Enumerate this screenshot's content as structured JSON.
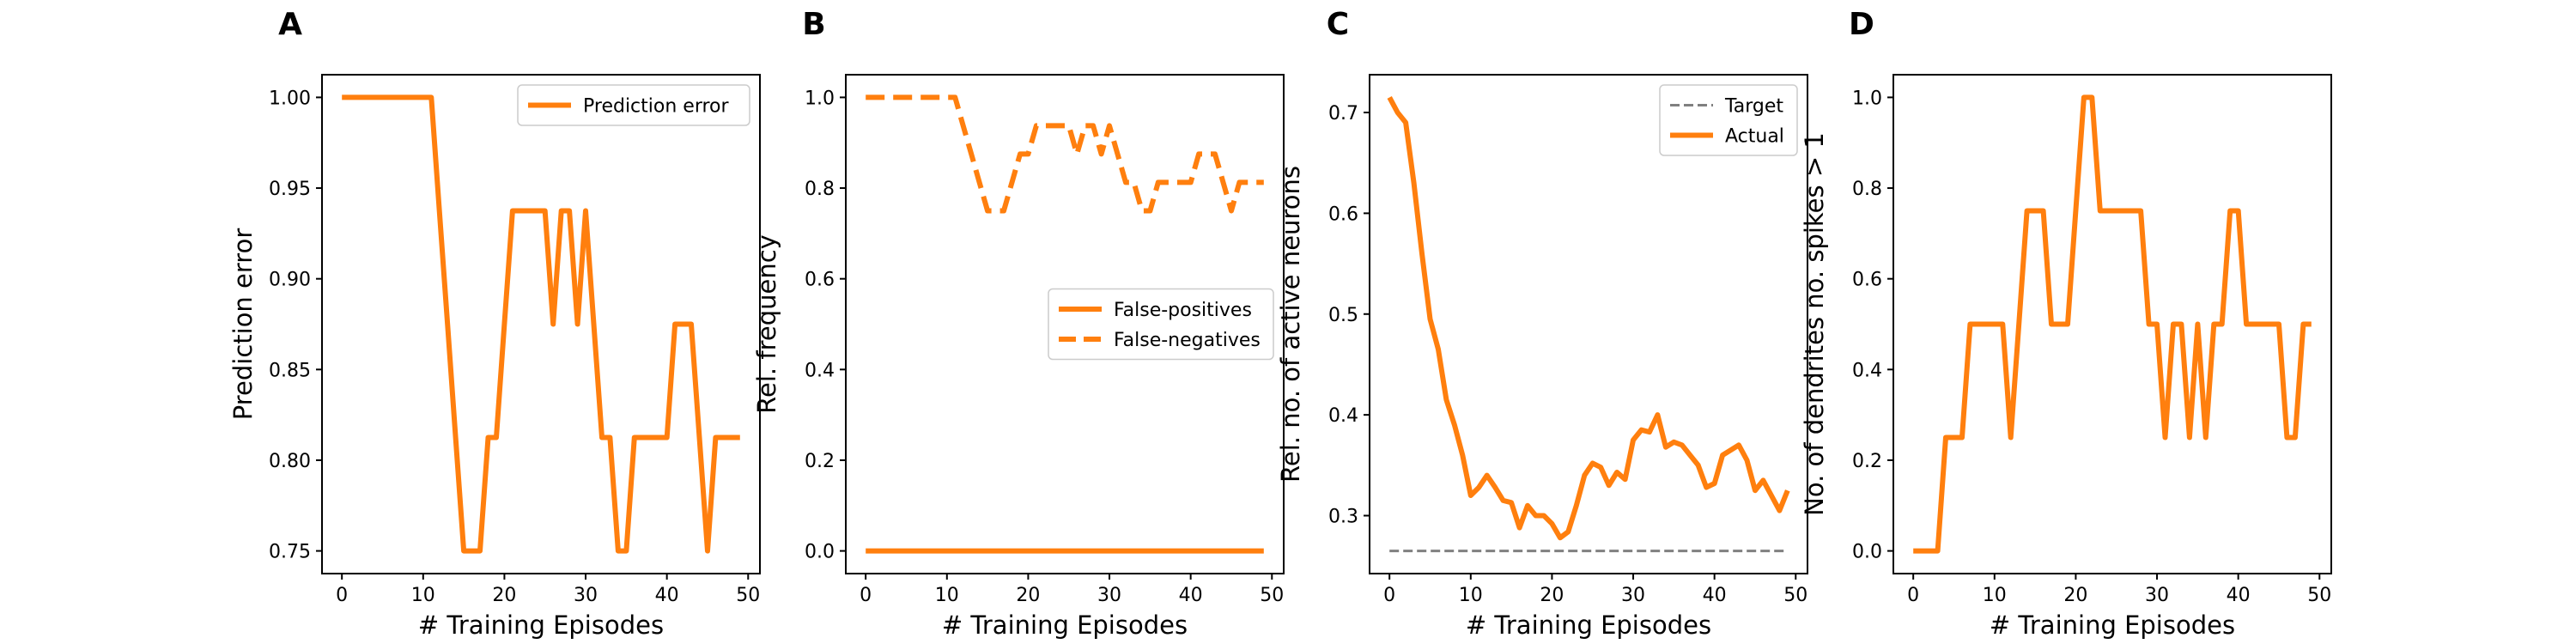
{
  "colors": {
    "series": "#ff7f0e",
    "target": "#808080",
    "frame": "#000000"
  },
  "chart_data": [
    {
      "panel_label": "A",
      "type": "line",
      "xlabel": "# Training Episodes",
      "ylabel": "Prediction error",
      "xlim": [
        -2.45,
        51.45
      ],
      "ylim": [
        0.7375,
        1.0125
      ],
      "xticks": [
        0,
        10,
        20,
        30,
        40,
        50
      ],
      "yticks": [
        0.75,
        0.8,
        0.85,
        0.9,
        0.95,
        1.0
      ],
      "ytick_labels": [
        "0.75",
        "0.80",
        "0.85",
        "0.90",
        "0.95",
        "1.00"
      ],
      "legend_loc": "upper-right",
      "series": [
        {
          "name": "Prediction error",
          "style": "solid",
          "x": [
            0,
            1,
            2,
            3,
            4,
            5,
            6,
            7,
            8,
            9,
            10,
            11,
            12,
            13,
            14,
            15,
            16,
            17,
            18,
            19,
            20,
            21,
            22,
            23,
            24,
            25,
            26,
            27,
            28,
            29,
            30,
            31,
            32,
            33,
            34,
            35,
            36,
            37,
            38,
            39,
            40,
            41,
            42,
            43,
            44,
            45,
            46,
            47,
            48,
            49
          ],
          "y": [
            1,
            1,
            1,
            1,
            1,
            1,
            1,
            1,
            1,
            1,
            1,
            1,
            0.9375,
            0.875,
            0.8125,
            0.75,
            0.75,
            0.75,
            0.8125,
            0.8125,
            0.875,
            0.9375,
            0.9375,
            0.9375,
            0.9375,
            0.9375,
            0.875,
            0.9375,
            0.9375,
            0.875,
            0.9375,
            0.875,
            0.8125,
            0.8125,
            0.75,
            0.75,
            0.8125,
            0.8125,
            0.8125,
            0.8125,
            0.8125,
            0.875,
            0.875,
            0.875,
            0.8125,
            0.75,
            0.8125,
            0.8125,
            0.8125,
            0.8125
          ]
        }
      ]
    },
    {
      "panel_label": "B",
      "type": "line",
      "xlabel": "# Training Episodes",
      "ylabel": "Rel. frequency",
      "xlim": [
        -2.45,
        51.45
      ],
      "ylim": [
        -0.05,
        1.05
      ],
      "xticks": [
        0,
        10,
        20,
        30,
        40,
        50
      ],
      "yticks": [
        0.0,
        0.2,
        0.4,
        0.6,
        0.8,
        1.0
      ],
      "ytick_labels": [
        "0.0",
        "0.2",
        "0.4",
        "0.6",
        "0.8",
        "1.0"
      ],
      "legend_loc": "center-right",
      "series": [
        {
          "name": "False-positives",
          "style": "solid",
          "x": [
            0,
            49
          ],
          "y": [
            0,
            0
          ]
        },
        {
          "name": "False-negatives",
          "style": "dashed",
          "x": [
            0,
            1,
            2,
            3,
            4,
            5,
            6,
            7,
            8,
            9,
            10,
            11,
            12,
            13,
            14,
            15,
            16,
            17,
            18,
            19,
            20,
            21,
            22,
            23,
            24,
            25,
            26,
            27,
            28,
            29,
            30,
            31,
            32,
            33,
            34,
            35,
            36,
            37,
            38,
            39,
            40,
            41,
            42,
            43,
            44,
            45,
            46,
            47,
            48,
            49
          ],
          "y": [
            1,
            1,
            1,
            1,
            1,
            1,
            1,
            1,
            1,
            1,
            1,
            1,
            0.9375,
            0.875,
            0.8125,
            0.75,
            0.75,
            0.75,
            0.8125,
            0.875,
            0.875,
            0.9375,
            0.9375,
            0.9375,
            0.9375,
            0.9375,
            0.875,
            0.9375,
            0.9375,
            0.875,
            0.9375,
            0.875,
            0.8125,
            0.8125,
            0.75,
            0.75,
            0.8125,
            0.8125,
            0.8125,
            0.8125,
            0.8125,
            0.875,
            0.875,
            0.875,
            0.8125,
            0.75,
            0.8125,
            0.8125,
            0.8125,
            0.8125
          ]
        }
      ]
    },
    {
      "panel_label": "C",
      "type": "line",
      "xlabel": "# Training Episodes",
      "ylabel": "Rel. no. of active neurons",
      "xlim": [
        -2.45,
        51.45
      ],
      "ylim": [
        0.2425,
        0.7375
      ],
      "xticks": [
        0,
        10,
        20,
        30,
        40,
        50
      ],
      "yticks": [
        0.3,
        0.4,
        0.5,
        0.6,
        0.7
      ],
      "ytick_labels": [
        "0.3",
        "0.4",
        "0.5",
        "0.6",
        "0.7"
      ],
      "legend_loc": "upper-right",
      "series": [
        {
          "name": "Target",
          "style": "dashed-thin",
          "x": [
            0,
            49
          ],
          "y": [
            0.265,
            0.265
          ]
        },
        {
          "name": "Actual",
          "style": "solid",
          "x": [
            0,
            1,
            2,
            3,
            4,
            5,
            6,
            7,
            8,
            9,
            10,
            11,
            12,
            13,
            14,
            15,
            16,
            17,
            18,
            19,
            20,
            21,
            22,
            23,
            24,
            25,
            26,
            27,
            28,
            29,
            30,
            31,
            32,
            33,
            34,
            35,
            36,
            37,
            38,
            39,
            40,
            41,
            42,
            43,
            44,
            45,
            46,
            47,
            48,
            49
          ],
          "y": [
            0.715,
            0.7,
            0.69,
            0.63,
            0.56,
            0.495,
            0.465,
            0.415,
            0.39,
            0.36,
            0.32,
            0.328,
            0.34,
            0.328,
            0.315,
            0.313,
            0.288,
            0.31,
            0.3,
            0.3,
            0.292,
            0.278,
            0.284,
            0.31,
            0.34,
            0.352,
            0.348,
            0.33,
            0.343,
            0.336,
            0.375,
            0.385,
            0.383,
            0.4,
            0.368,
            0.373,
            0.37,
            0.36,
            0.35,
            0.328,
            0.332,
            0.36,
            0.365,
            0.37,
            0.355,
            0.325,
            0.335,
            0.32,
            0.305,
            0.325
          ]
        }
      ]
    },
    {
      "panel_label": "D",
      "type": "line",
      "xlabel": "# Training Episodes",
      "ylabel": "No. of dendrites no. spikes > 1",
      "xlim": [
        -2.45,
        51.45
      ],
      "ylim": [
        -0.05,
        1.05
      ],
      "xticks": [
        0,
        10,
        20,
        30,
        40,
        50
      ],
      "yticks": [
        0.0,
        0.2,
        0.4,
        0.6,
        0.8,
        1.0
      ],
      "ytick_labels": [
        "0.0",
        "0.2",
        "0.4",
        "0.6",
        "0.8",
        "1.0"
      ],
      "legend_loc": "",
      "series": [
        {
          "style": "solid",
          "x": [
            0,
            1,
            2,
            3,
            4,
            5,
            6,
            7,
            8,
            9,
            10,
            11,
            12,
            13,
            14,
            15,
            16,
            17,
            18,
            19,
            20,
            21,
            22,
            23,
            24,
            25,
            26,
            27,
            28,
            29,
            30,
            31,
            32,
            33,
            34,
            35,
            36,
            37,
            38,
            39,
            40,
            41,
            42,
            43,
            44,
            45,
            46,
            47,
            48,
            49
          ],
          "y": [
            0,
            0,
            0,
            0,
            0.25,
            0.25,
            0.25,
            0.5,
            0.5,
            0.5,
            0.5,
            0.5,
            0.25,
            0.5,
            0.75,
            0.75,
            0.75,
            0.5,
            0.5,
            0.5,
            0.75,
            1,
            1,
            0.75,
            0.75,
            0.75,
            0.75,
            0.75,
            0.75,
            0.5,
            0.5,
            0.25,
            0.5,
            0.5,
            0.25,
            0.5,
            0.25,
            0.5,
            0.5,
            0.75,
            0.75,
            0.5,
            0.5,
            0.5,
            0.5,
            0.5,
            0.25,
            0.25,
            0.5,
            0.5
          ]
        }
      ]
    }
  ]
}
